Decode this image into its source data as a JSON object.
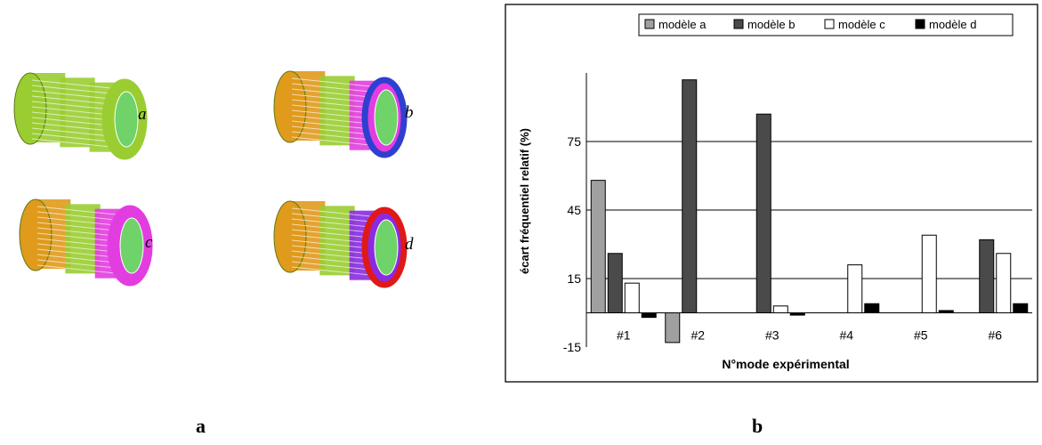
{
  "figure": {
    "captions": [
      "a",
      "b"
    ],
    "models": [
      {
        "label": "a",
        "segment_colors": [
          "#9acd32",
          "#9acd32",
          "#9acd32"
        ],
        "inner_ring_color": "#9acd32"
      },
      {
        "label": "b",
        "segment_colors": [
          "#e09a1c",
          "#9acd32",
          "#e23de0"
        ],
        "inner_ring_color": "#2f3fcf"
      },
      {
        "label": "c",
        "segment_colors": [
          "#e09a1c",
          "#9acd32",
          "#e23de0"
        ],
        "inner_ring_color": "#e23de0"
      },
      {
        "label": "d",
        "segment_colors": [
          "#e09a1c",
          "#9acd32",
          "#8a2be2"
        ],
        "inner_ring_color": "#e01818"
      }
    ]
  },
  "chart_data": {
    "type": "bar",
    "title": "",
    "xlabel": "N°mode expérimental",
    "ylabel": "écart fréquentiel relatif (%)",
    "categories": [
      "#1",
      "#2",
      "#3",
      "#4",
      "#5",
      "#6"
    ],
    "ylim": [
      -15,
      105
    ],
    "yticks": [
      -15,
      15,
      45,
      75
    ],
    "grid": true,
    "legend_position": "top",
    "series": [
      {
        "name": "modèle a",
        "color": "#a0a0a0",
        "values": [
          58,
          -13,
          0,
          0,
          0,
          0
        ]
      },
      {
        "name": "modèle b",
        "color": "#4a4a4a",
        "values": [
          26,
          102,
          87,
          0,
          0,
          32
        ]
      },
      {
        "name": "modèle c",
        "color": "#ffffff",
        "values": [
          13,
          0,
          3,
          21,
          34,
          26
        ]
      },
      {
        "name": "modèle d",
        "color": "#000000",
        "values": [
          -2,
          0,
          -1,
          4,
          1,
          4
        ]
      }
    ]
  }
}
